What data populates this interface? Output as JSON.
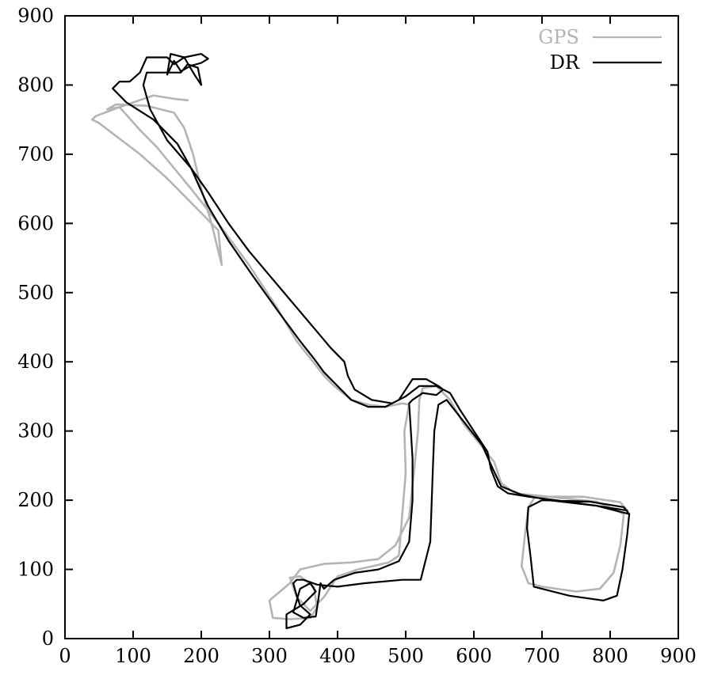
{
  "chart_data": {
    "type": "line",
    "title": "",
    "xlabel": "",
    "ylabel": "",
    "xlim": [
      0,
      900
    ],
    "ylim": [
      0,
      900
    ],
    "x_ticks": [
      0,
      100,
      200,
      300,
      400,
      500,
      600,
      700,
      800,
      900
    ],
    "y_ticks": [
      0,
      100,
      200,
      300,
      400,
      500,
      600,
      700,
      800,
      900
    ],
    "x_tick_labels": [
      "0",
      "100",
      "200",
      "300",
      "400",
      "500",
      "600",
      "700",
      "800",
      "900"
    ],
    "y_tick_labels": [
      "0",
      "100",
      "200",
      "300",
      "400",
      "500",
      "600",
      "700",
      "800",
      "900"
    ],
    "grid": false,
    "legend_position": "top-right",
    "series": [
      {
        "name": "GPS",
        "color": "#b4b4b4",
        "points": [
          [
            825,
            185
          ],
          [
            815,
            197
          ],
          [
            760,
            205
          ],
          [
            690,
            205
          ],
          [
            680,
            190
          ],
          [
            675,
            150
          ],
          [
            670,
            105
          ],
          [
            680,
            80
          ],
          [
            700,
            75
          ],
          [
            750,
            68
          ],
          [
            785,
            72
          ],
          [
            805,
            95
          ],
          [
            815,
            135
          ],
          [
            820,
            180
          ],
          [
            780,
            198
          ],
          [
            710,
            205
          ],
          [
            660,
            210
          ],
          [
            640,
            225
          ],
          [
            630,
            255
          ],
          [
            610,
            280
          ],
          [
            585,
            310
          ],
          [
            565,
            345
          ],
          [
            545,
            365
          ],
          [
            525,
            362
          ],
          [
            520,
            345
          ],
          [
            518,
            300
          ],
          [
            512,
            240
          ],
          [
            505,
            175
          ],
          [
            485,
            135
          ],
          [
            460,
            115
          ],
          [
            420,
            110
          ],
          [
            380,
            108
          ],
          [
            345,
            100
          ],
          [
            330,
            80
          ],
          [
            300,
            55
          ],
          [
            305,
            30
          ],
          [
            330,
            28
          ],
          [
            360,
            30
          ],
          [
            370,
            45
          ],
          [
            365,
            75
          ],
          [
            345,
            90
          ],
          [
            330,
            88
          ],
          [
            340,
            60
          ],
          [
            360,
            40
          ],
          [
            380,
            60
          ],
          [
            400,
            90
          ],
          [
            430,
            100
          ],
          [
            475,
            110
          ],
          [
            490,
            120
          ],
          [
            495,
            180
          ],
          [
            500,
            240
          ],
          [
            498,
            300
          ],
          [
            505,
            338
          ],
          [
            495,
            340
          ],
          [
            470,
            335
          ],
          [
            445,
            338
          ],
          [
            420,
            345
          ],
          [
            395,
            365
          ],
          [
            380,
            380
          ],
          [
            360,
            405
          ],
          [
            340,
            430
          ],
          [
            310,
            480
          ],
          [
            270,
            540
          ],
          [
            225,
            600
          ],
          [
            185,
            650
          ],
          [
            160,
            680
          ],
          [
            135,
            710
          ],
          [
            110,
            735
          ],
          [
            80,
            768
          ],
          [
            45,
            755
          ],
          [
            40,
            750
          ],
          [
            50,
            745
          ],
          [
            70,
            730
          ],
          [
            110,
            700
          ],
          [
            150,
            665
          ],
          [
            195,
            620
          ],
          [
            225,
            590
          ],
          [
            230,
            540
          ],
          [
            215,
            600
          ],
          [
            200,
            650
          ],
          [
            188,
            700
          ],
          [
            175,
            738
          ],
          [
            160,
            760
          ],
          [
            120,
            770
          ],
          [
            75,
            772
          ],
          [
            62,
            765
          ],
          [
            80,
            768
          ],
          [
            130,
            785
          ],
          [
            160,
            780
          ],
          [
            180,
            778
          ]
        ]
      },
      {
        "name": "DR",
        "color": "#000000",
        "points": [
          [
            828,
            180
          ],
          [
            820,
            190
          ],
          [
            770,
            198
          ],
          [
            700,
            200
          ],
          [
            680,
            190
          ],
          [
            678,
            160
          ],
          [
            683,
            120
          ],
          [
            688,
            75
          ],
          [
            740,
            62
          ],
          [
            790,
            55
          ],
          [
            810,
            62
          ],
          [
            818,
            100
          ],
          [
            825,
            150
          ],
          [
            828,
            180
          ],
          [
            780,
            192
          ],
          [
            710,
            200
          ],
          [
            670,
            208
          ],
          [
            640,
            220
          ],
          [
            628,
            245
          ],
          [
            612,
            280
          ],
          [
            580,
            320
          ],
          [
            560,
            345
          ],
          [
            548,
            338
          ],
          [
            542,
            300
          ],
          [
            540,
            250
          ],
          [
            536,
            140
          ],
          [
            522,
            85
          ],
          [
            495,
            85
          ],
          [
            440,
            80
          ],
          [
            400,
            75
          ],
          [
            370,
            78
          ],
          [
            350,
            85
          ],
          [
            340,
            85
          ],
          [
            335,
            80
          ],
          [
            340,
            62
          ],
          [
            345,
            48
          ],
          [
            360,
            35
          ],
          [
            345,
            20
          ],
          [
            325,
            15
          ],
          [
            325,
            35
          ],
          [
            350,
            50
          ],
          [
            368,
            68
          ],
          [
            360,
            80
          ],
          [
            345,
            72
          ],
          [
            340,
            55
          ],
          [
            335,
            38
          ],
          [
            350,
            30
          ],
          [
            368,
            32
          ],
          [
            372,
            58
          ],
          [
            375,
            80
          ],
          [
            380,
            72
          ],
          [
            395,
            85
          ],
          [
            425,
            95
          ],
          [
            460,
            100
          ],
          [
            490,
            112
          ],
          [
            505,
            140
          ],
          [
            510,
            200
          ],
          [
            510,
            260
          ],
          [
            507,
            310
          ],
          [
            505,
            340
          ],
          [
            510,
            345
          ],
          [
            525,
            355
          ],
          [
            545,
            352
          ],
          [
            555,
            360
          ],
          [
            548,
            365
          ],
          [
            530,
            375
          ],
          [
            510,
            375
          ],
          [
            500,
            360
          ],
          [
            490,
            345
          ],
          [
            470,
            335
          ],
          [
            445,
            335
          ],
          [
            420,
            345
          ],
          [
            395,
            370
          ],
          [
            380,
            385
          ],
          [
            365,
            405
          ],
          [
            345,
            430
          ],
          [
            315,
            470
          ],
          [
            275,
            525
          ],
          [
            240,
            575
          ],
          [
            210,
            625
          ],
          [
            185,
            680
          ],
          [
            165,
            715
          ],
          [
            130,
            750
          ],
          [
            90,
            775
          ],
          [
            70,
            795
          ],
          [
            80,
            805
          ],
          [
            95,
            805
          ],
          [
            110,
            818
          ],
          [
            120,
            840
          ],
          [
            150,
            840
          ],
          [
            160,
            830
          ],
          [
            175,
            840
          ],
          [
            200,
            845
          ],
          [
            210,
            838
          ],
          [
            200,
            832
          ],
          [
            185,
            828
          ],
          [
            170,
            820
          ],
          [
            160,
            835
          ],
          [
            150,
            815
          ],
          [
            155,
            845
          ],
          [
            175,
            840
          ],
          [
            190,
            815
          ],
          [
            200,
            800
          ],
          [
            195,
            825
          ],
          [
            180,
            830
          ],
          [
            170,
            818
          ],
          [
            120,
            818
          ],
          [
            115,
            800
          ],
          [
            125,
            765
          ],
          [
            150,
            720
          ],
          [
            185,
            680
          ],
          [
            210,
            645
          ],
          [
            240,
            600
          ],
          [
            270,
            560
          ],
          [
            300,
            525
          ],
          [
            330,
            490
          ],
          [
            360,
            455
          ],
          [
            390,
            420
          ],
          [
            410,
            400
          ],
          [
            415,
            380
          ],
          [
            425,
            360
          ],
          [
            450,
            345
          ],
          [
            480,
            340
          ],
          [
            500,
            350
          ],
          [
            520,
            365
          ],
          [
            545,
            365
          ],
          [
            565,
            355
          ],
          [
            580,
            330
          ],
          [
            600,
            300
          ],
          [
            620,
            270
          ],
          [
            625,
            245
          ],
          [
            635,
            220
          ],
          [
            650,
            210
          ],
          [
            680,
            205
          ],
          [
            720,
            200
          ],
          [
            780,
            192
          ],
          [
            825,
            185
          ]
        ]
      }
    ]
  }
}
